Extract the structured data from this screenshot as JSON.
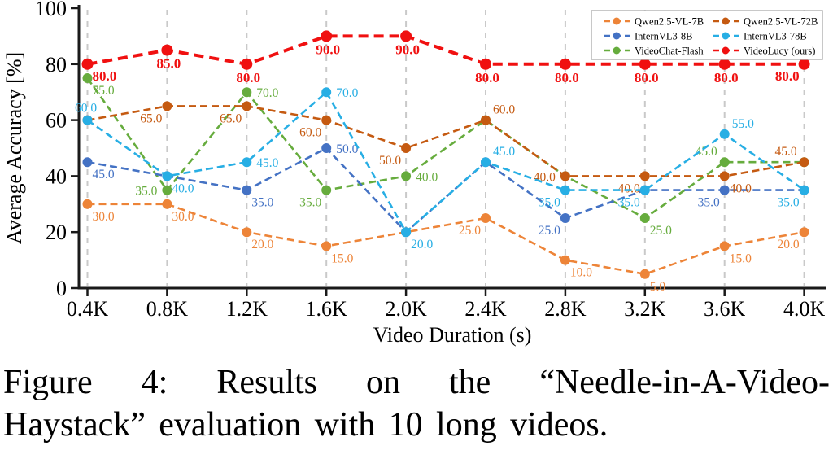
{
  "figure": {
    "caption_line1": "Figure 4: Results on the “Needle-in-A-Video-",
    "caption_line2": "Haystack” evaluation with 10 long videos."
  },
  "chart_data": {
    "type": "line",
    "title": "",
    "xlabel": "Video Duration (s)",
    "ylabel": "Average Accuracy [%]",
    "x_ticklabels": [
      "0.4K",
      "0.8K",
      "1.2K",
      "1.6K",
      "2.0K",
      "2.4K",
      "2.8K",
      "3.2K",
      "3.6K",
      "4.0K"
    ],
    "y_ticks": [
      0,
      20,
      40,
      60,
      80,
      100
    ],
    "ylim": [
      0,
      100
    ],
    "grid": "vertical-dashed",
    "line_style": "dashed",
    "legend": {
      "position": "upper right",
      "columns": 2
    },
    "colors": {
      "grid": "#c9c9c9",
      "axis": "#1a1a1a",
      "legend_border": "#b5b5b5"
    },
    "draw_order": [
      4,
      0,
      2,
      1,
      3,
      5
    ],
    "series": [
      {
        "name": "Qwen2.5-VL-7B",
        "color": "#ED8438",
        "emphasis": false,
        "values": [
          30,
          30,
          20,
          15,
          20,
          25,
          10,
          5,
          15,
          20
        ],
        "point_labels": [
          "30.0",
          "30.0",
          "20.0",
          "15.0",
          null,
          "25.0",
          "10.0",
          "5.0",
          "15.0",
          "20.0"
        ],
        "label_pos": [
          "br",
          "br",
          "br",
          "br",
          null,
          "bl",
          "br",
          "br",
          "br",
          "bl"
        ]
      },
      {
        "name": "Qwen2.5-VL-72B",
        "color": "#C55A11",
        "emphasis": false,
        "values": [
          60,
          65,
          65,
          60,
          50,
          60,
          40,
          40,
          40,
          45
        ],
        "point_labels": [
          null,
          "65.0",
          "65.0",
          "60.0",
          "50.0",
          "60.0",
          "40.0",
          "40.0",
          "40.0",
          "45.0"
        ],
        "label_pos": [
          null,
          "bl",
          "bl",
          "bl",
          "bl",
          "ar",
          "l",
          "bl",
          "br",
          "al"
        ]
      },
      {
        "name": "InternVL3-8B",
        "color": "#4472C4",
        "emphasis": false,
        "values": [
          45,
          40,
          35,
          50,
          20,
          45,
          25,
          35,
          35,
          35
        ],
        "point_labels": [
          "45.0",
          null,
          "35.0",
          "50.0",
          null,
          null,
          "25.0",
          null,
          "35.0",
          null
        ],
        "label_pos": [
          "br",
          null,
          "br",
          "r",
          null,
          null,
          "bl",
          null,
          "bl",
          null
        ]
      },
      {
        "name": "InternVL3-78B",
        "color": "#27AEE4",
        "emphasis": false,
        "values": [
          60,
          40,
          45,
          70,
          20,
          45,
          35,
          35,
          55,
          35
        ],
        "point_labels": [
          "60.0",
          "40.0",
          "45.0",
          "70.0",
          "20.0",
          "45.0",
          "35.0",
          "35.0",
          "55.0",
          "35.0"
        ],
        "label_pos": [
          "a",
          "br",
          "r",
          "r",
          "br",
          "ar",
          "bl",
          "bl",
          "ar",
          "bl"
        ]
      },
      {
        "name": "VideoChat-Flash",
        "color": "#66AC3D",
        "emphasis": false,
        "values": [
          75,
          35,
          70,
          35,
          40,
          60,
          40,
          25,
          45,
          45
        ],
        "point_labels": [
          "75.0",
          "35.0",
          "70.0",
          "35.0",
          "40.0",
          null,
          null,
          "25.0",
          "45.0",
          null
        ],
        "label_pos": [
          "br",
          "l",
          "r",
          "bl",
          "r",
          null,
          null,
          "br",
          "al",
          null
        ]
      },
      {
        "name": "VideoLucy (ours)",
        "color": "#F01010",
        "emphasis": true,
        "values": [
          80,
          85,
          80,
          90,
          90,
          80,
          80,
          80,
          80,
          80
        ],
        "point_labels": [
          "80.0",
          "85.0",
          "80.0",
          "90.0",
          "90.0",
          "80.0",
          "80.0",
          "80.0",
          "80.0",
          "80.0"
        ],
        "label_pos": [
          "br",
          "b",
          "b",
          "b",
          "b",
          "b",
          "b",
          "b",
          "b",
          "bl"
        ]
      }
    ]
  }
}
